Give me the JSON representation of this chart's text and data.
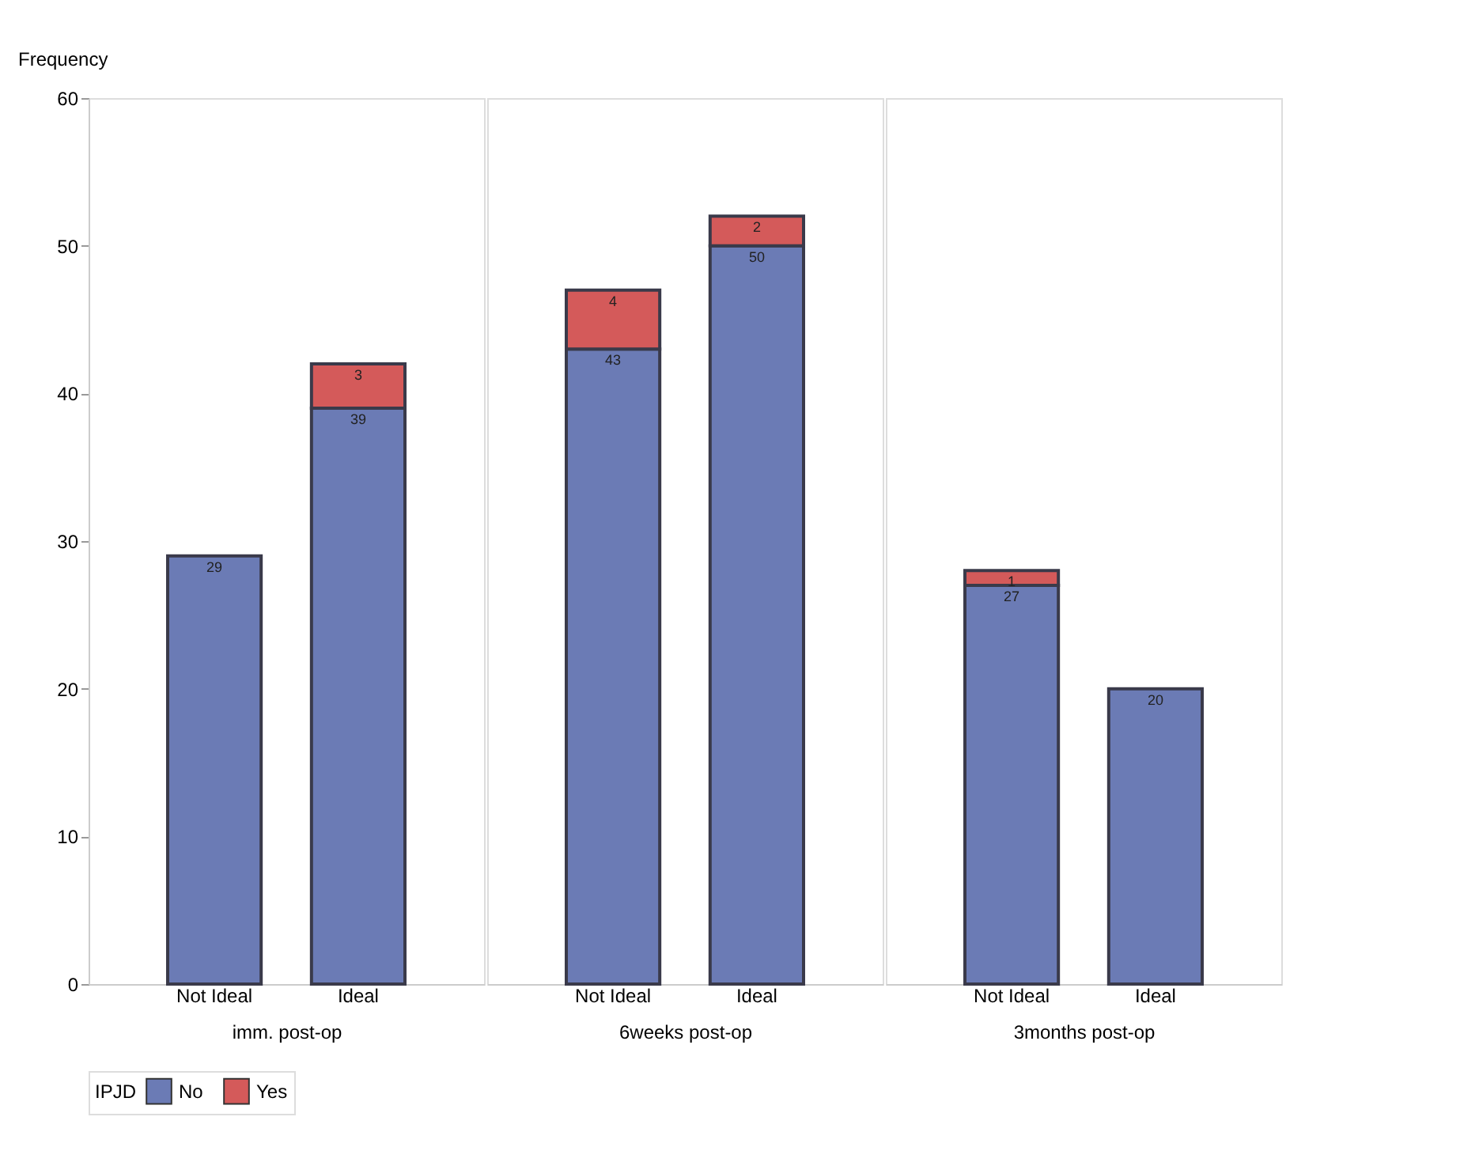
{
  "chart_data": [
    {
      "type": "bar",
      "stacked": true,
      "data_labels": true,
      "categories": [
        "Not Ideal",
        "Ideal"
      ],
      "xlabel": "imm. post-op",
      "ylabel": "Frequency",
      "ylim": [
        0,
        60
      ],
      "yticks": [
        0,
        10,
        20,
        30,
        40,
        50,
        60
      ],
      "legend": "bottom",
      "legend_title": "IPJD",
      "series": [
        {
          "name": "No",
          "color": "#6b7bb5",
          "values": [
            29,
            39
          ]
        },
        {
          "name": "Yes",
          "color": "#d45a5a",
          "values": [
            null,
            3
          ]
        }
      ]
    },
    {
      "type": "bar",
      "stacked": true,
      "data_labels": true,
      "categories": [
        "Not Ideal",
        "Ideal"
      ],
      "xlabel": "6weeks post-op",
      "ylim": [
        0,
        60
      ],
      "tick_labels": "x",
      "series": [
        {
          "name": "No",
          "color": "#6b7bb5",
          "values": [
            43,
            50
          ]
        },
        {
          "name": "Yes",
          "color": "#d45a5a",
          "values": [
            4,
            2
          ]
        }
      ]
    },
    {
      "type": "bar",
      "stacked": true,
      "data_labels": true,
      "categories": [
        "Not Ideal",
        "Ideal"
      ],
      "xlabel": "3months post-op",
      "ylim": [
        0,
        60
      ],
      "tick_labels": "x",
      "series": [
        {
          "name": "No",
          "color": "#6b7bb5",
          "values": [
            27,
            20
          ]
        },
        {
          "name": "Yes",
          "color": "#d45a5a",
          "values": [
            1,
            null
          ]
        }
      ]
    }
  ]
}
